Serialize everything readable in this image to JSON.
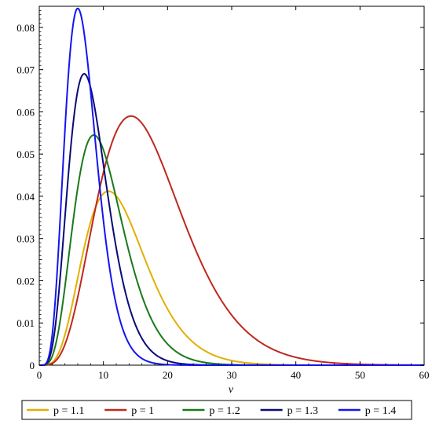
{
  "chart_data": {
    "type": "line",
    "xlabel": "v",
    "ylabel": "",
    "xlim": [
      0,
      60
    ],
    "ylim": [
      0,
      0.085
    ],
    "x_ticks": [
      0,
      10,
      20,
      30,
      40,
      50,
      60
    ],
    "x_tick_labels": [
      "0",
      "10",
      "20",
      "30",
      "40",
      "50",
      "60"
    ],
    "y_ticks": [
      0,
      0.01,
      0.02,
      0.03,
      0.04,
      0.05,
      0.06,
      0.07,
      0.08
    ],
    "y_tick_labels": [
      "0",
      "0.01",
      "0.02",
      "0.03",
      "0.04",
      "0.05",
      "0.06",
      "0.07",
      "0.08"
    ],
    "grid": false,
    "legend_position": "bottom",
    "series": [
      {
        "name": "p = 1.1",
        "color": "#e0b000",
        "peak_x": 10.8,
        "peak_y": 0.0412,
        "shape": 4.8,
        "x": [
          0,
          5,
          10,
          10.8,
          15,
          20,
          25,
          30,
          35,
          40
        ],
        "y": [
          0,
          0.0125,
          0.0405,
          0.0412,
          0.0295,
          0.0095,
          0.002,
          0.0003,
          0,
          0
        ]
      },
      {
        "name": "p = 1",
        "color": "#c0281e",
        "peak_x": 14.3,
        "peak_y": 0.059,
        "shape": 4.5,
        "x": [
          0,
          5,
          10,
          14.3,
          20,
          25,
          30,
          35,
          40,
          45,
          50
        ],
        "y": [
          0,
          0.01,
          0.0415,
          0.059,
          0.0425,
          0.0195,
          0.0065,
          0.0016,
          0.0003,
          0,
          0
        ]
      },
      {
        "name": "p = 1.2",
        "color": "#1a7a1a",
        "peak_x": 8.5,
        "peak_y": 0.0545,
        "shape": 4.8,
        "x": [
          0,
          5,
          8.5,
          12,
          15,
          20,
          25
        ],
        "y": [
          0,
          0.03,
          0.0545,
          0.031,
          0.009,
          0.001,
          0
        ]
      },
      {
        "name": "p = 1.3",
        "color": "#0a0a78",
        "peak_x": 7.0,
        "peak_y": 0.069,
        "shape": 5.2,
        "x": [
          0,
          4,
          7,
          10,
          13,
          17,
          20
        ],
        "y": [
          0,
          0.036,
          0.069,
          0.034,
          0.008,
          0.0005,
          0
        ]
      },
      {
        "name": "p = 1.4",
        "color": "#1414f0",
        "peak_x": 6.0,
        "peak_y": 0.0845,
        "shape": 5.8,
        "x": [
          0,
          3,
          6,
          9,
          12,
          15
        ],
        "y": [
          0,
          0.033,
          0.0845,
          0.032,
          0.003,
          0
        ]
      }
    ]
  }
}
